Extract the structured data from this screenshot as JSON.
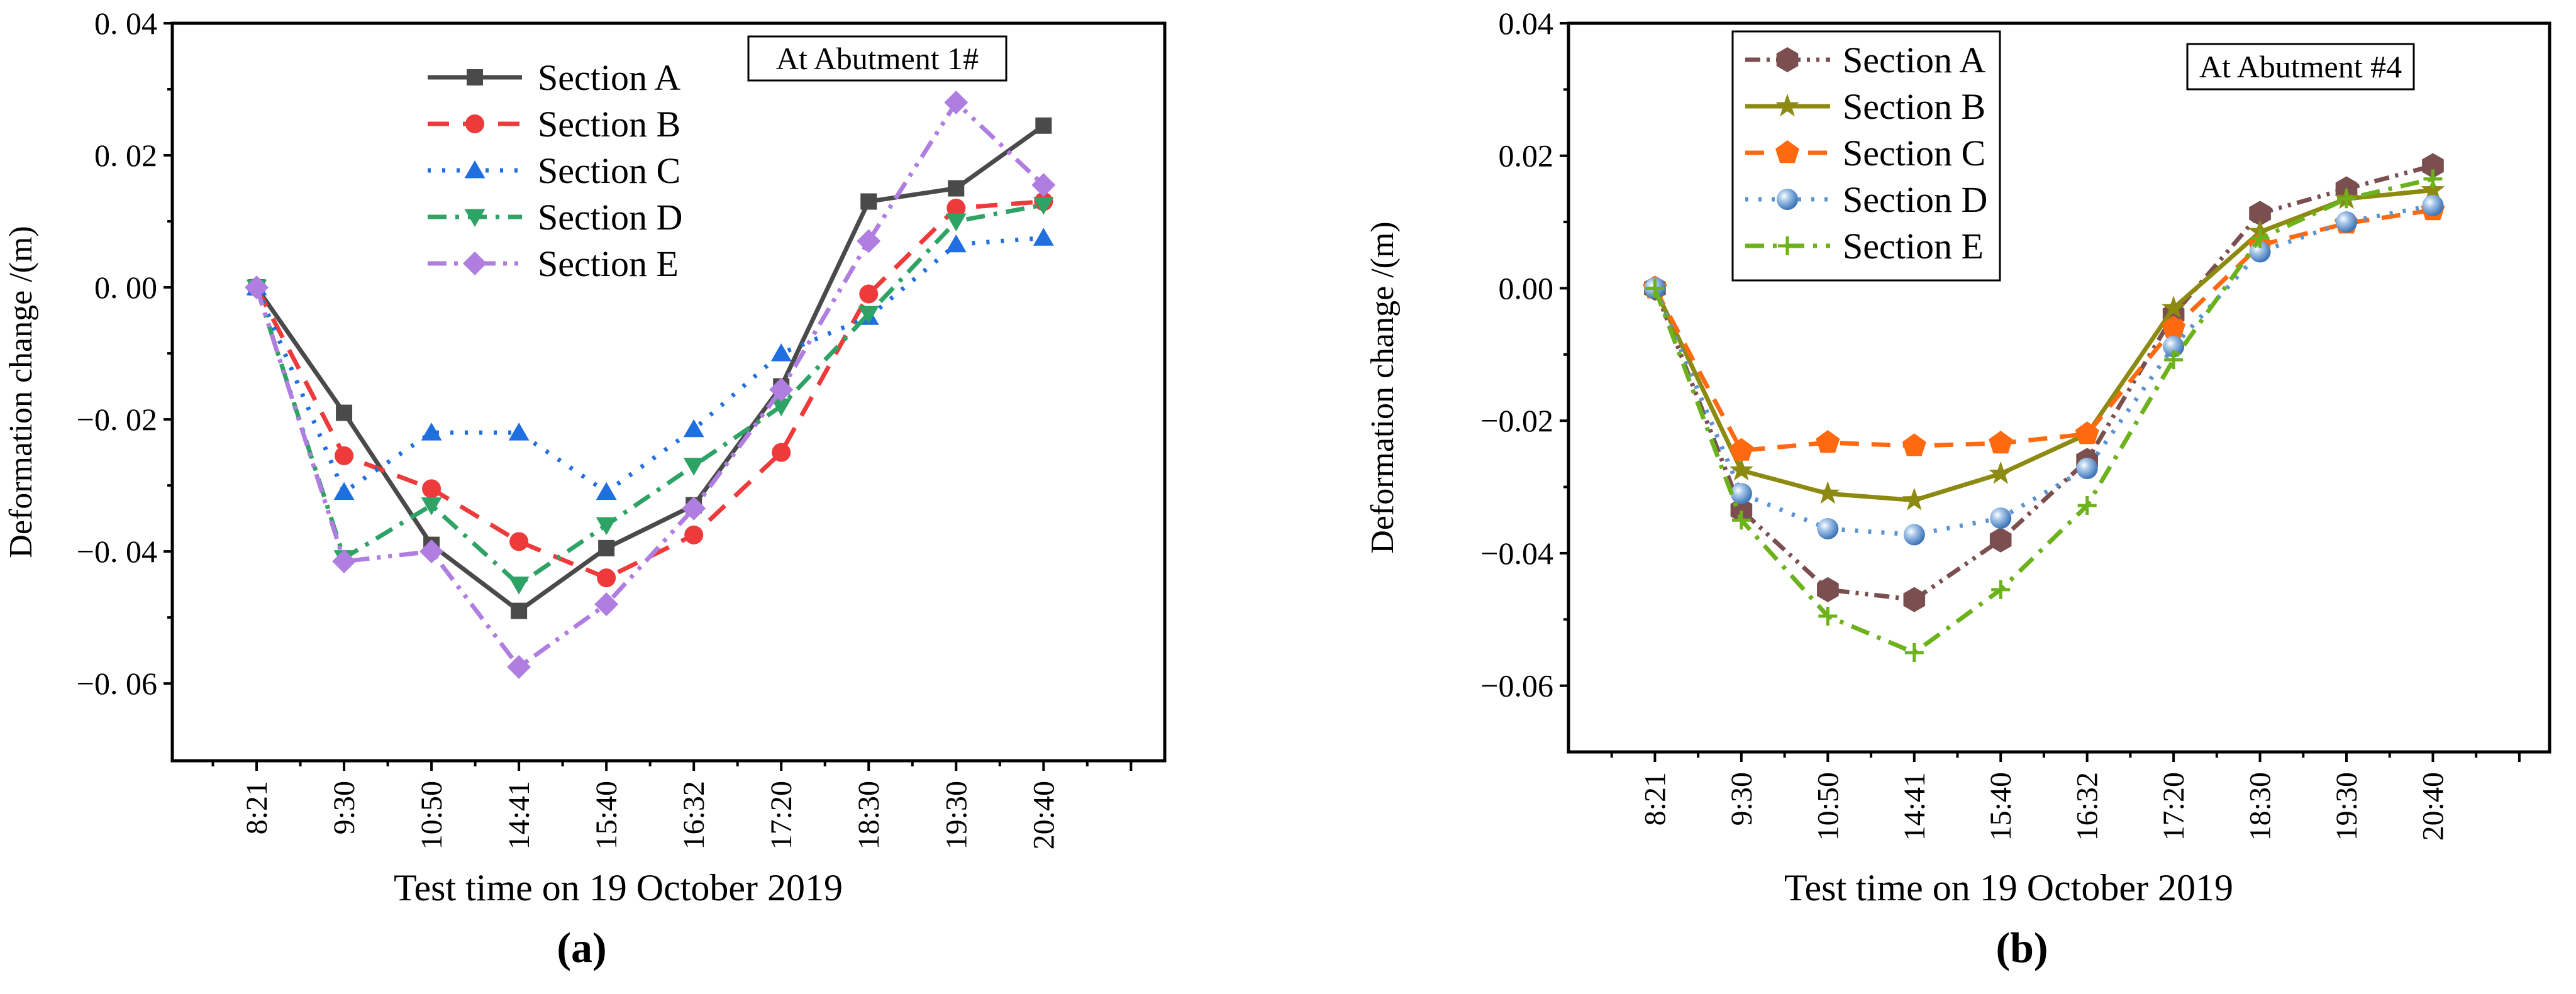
{
  "chart_data": [
    {
      "type": "line",
      "panel_label": "(a)",
      "title": "",
      "annotation": "At Abutment 1#",
      "xlabel": "Test time on 19 October 2019",
      "ylabel": "Deformation change /(m)",
      "categories": [
        "8:21",
        "9:30",
        "10:50",
        "14:41",
        "15:40",
        "16:32",
        "17:20",
        "18:30",
        "19:30",
        "20:40"
      ],
      "yticks": [
        0.04,
        0.02,
        0.0,
        -0.02,
        -0.04,
        -0.06
      ],
      "ytick_labels": [
        "0. 04",
        "0. 02",
        "0. 00",
        "−0. 02",
        "−0. 04",
        "−0. 06"
      ],
      "ylim": [
        -0.0717,
        0.04
      ],
      "grid": false,
      "legend_position": "top-center",
      "series": [
        {
          "name": "Section A",
          "color": "#4a4a4a",
          "marker": "square",
          "dash": "",
          "values": [
            0,
            -0.019,
            -0.039,
            -0.049,
            -0.0395,
            -0.033,
            -0.015,
            0.013,
            0.015,
            0.0245
          ]
        },
        {
          "name": "Section B",
          "color": "#ee3a3a",
          "marker": "circle",
          "dash": "34,22",
          "values": [
            0,
            -0.0255,
            -0.0305,
            -0.0385,
            -0.044,
            -0.0375,
            -0.025,
            -0.001,
            0.012,
            0.013
          ]
        },
        {
          "name": "Section C",
          "color": "#1f6fe0",
          "marker": "triangle-up",
          "dash": "5,18",
          "values": [
            0,
            -0.031,
            -0.022,
            -0.022,
            -0.031,
            -0.0215,
            -0.01,
            -0.0045,
            0.0065,
            0.0075
          ]
        },
        {
          "name": "Section D",
          "color": "#2ea366",
          "marker": "triangle-down",
          "dash": "30,14,6,14",
          "values": [
            0,
            -0.041,
            -0.033,
            -0.045,
            -0.036,
            -0.027,
            -0.018,
            -0.004,
            0.01,
            0.0125
          ]
        },
        {
          "name": "Section E",
          "color": "#b07ee0",
          "marker": "diamond",
          "dash": "30,12,6,12,6,12",
          "values": [
            0,
            -0.0415,
            -0.04,
            -0.0575,
            -0.048,
            -0.0335,
            -0.0155,
            0.007,
            0.028,
            0.0155
          ]
        }
      ]
    },
    {
      "type": "line",
      "panel_label": "(b)",
      "title": "",
      "annotation": "At Abutment #4",
      "xlabel": "Test time on 19 October  2019",
      "ylabel": "Deformation change /(m)",
      "categories": [
        "8:21",
        "9:30",
        "10:50",
        "14:41",
        "15:40",
        "16:32",
        "17:20",
        "18:30",
        "19:30",
        "20:40"
      ],
      "yticks": [
        0.04,
        0.02,
        0.0,
        -0.02,
        -0.04,
        -0.06
      ],
      "ytick_labels": [
        "0.04",
        "0.02",
        "0.00",
        "−0.02",
        "−0.04",
        "−0.06"
      ],
      "ylim": [
        -0.07,
        0.04
      ],
      "grid": false,
      "legend_position": "top-left",
      "series": [
        {
          "name": "Section A",
          "color": "#7b4f4f",
          "marker": "hexagon",
          "dash": "24,10,5,10,5,10",
          "values": [
            0,
            -0.0335,
            -0.0455,
            -0.047,
            -0.038,
            -0.026,
            -0.004,
            0.0113,
            0.015,
            0.0185
          ]
        },
        {
          "name": "Section B",
          "color": "#8c8a10",
          "marker": "star",
          "dash": "",
          "values": [
            0,
            -0.0275,
            -0.031,
            -0.032,
            -0.028,
            -0.022,
            -0.003,
            0.0085,
            0.0135,
            0.0148
          ]
        },
        {
          "name": "Section C",
          "color": "#ff6a10",
          "marker": "pentagon",
          "dash": "30,20",
          "values": [
            0,
            -0.0245,
            -0.0233,
            -0.0238,
            -0.0234,
            -0.022,
            -0.006,
            0.0065,
            0.0098,
            0.0118
          ]
        },
        {
          "name": "Section D",
          "color": "#5b94d0",
          "marker": "sphere",
          "dash": "5,16",
          "values": [
            0,
            -0.031,
            -0.0363,
            -0.0372,
            -0.0347,
            -0.0272,
            -0.0088,
            0.0055,
            0.01,
            0.0125
          ]
        },
        {
          "name": "Section E",
          "color": "#6cb21a",
          "marker": "plus",
          "dash": "30,14,6,14",
          "values": [
            0,
            -0.035,
            -0.0495,
            -0.055,
            -0.0455,
            -0.0328,
            -0.0108,
            0.0075,
            0.0135,
            0.0165
          ]
        }
      ]
    }
  ]
}
